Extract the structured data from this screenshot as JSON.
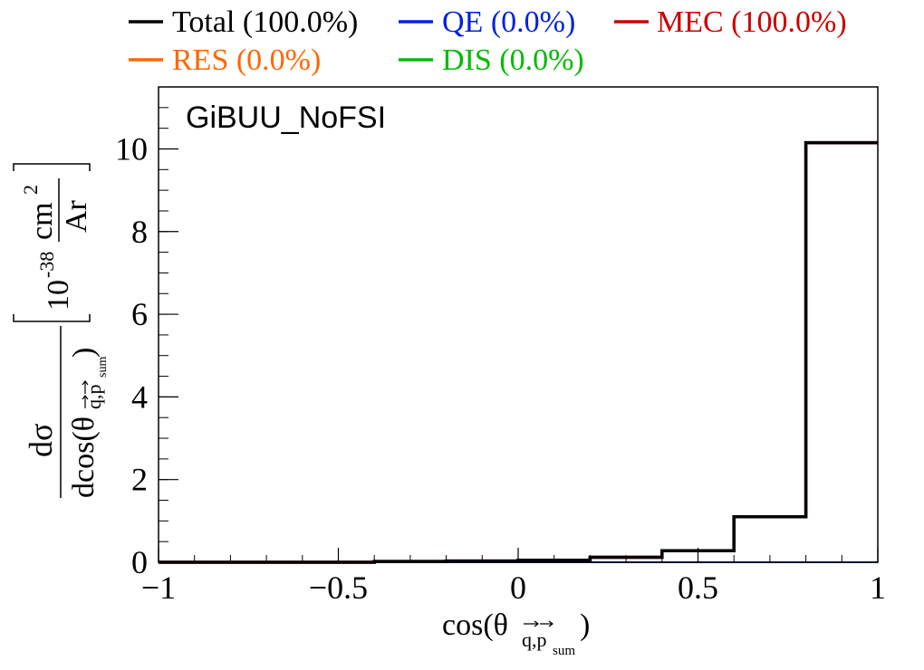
{
  "chart_data": {
    "type": "step",
    "annotation": "GiBUU_NoFSI",
    "xlabel": {
      "main": "cos(θ",
      "sub": "q,p",
      "subsub": "sum",
      "close": ")"
    },
    "ylabel": {
      "numerator": "dσ",
      "denominator_main": "dcos(θ",
      "denominator_sub": "q,p",
      "denominator_subsub": "sum",
      "denominator_close": ")",
      "unit_prefix": "10",
      "unit_exp": "-38",
      "unit_num": "cm",
      "unit_num_exp": "2",
      "unit_den": "Ar"
    },
    "xlim": [
      -1,
      1
    ],
    "ylim": [
      0,
      11.5
    ],
    "xticks": [
      -1,
      -0.5,
      0,
      0.5,
      1
    ],
    "xtick_labels": [
      "−1",
      "−0.5",
      "0",
      "0.5",
      "1"
    ],
    "yticks": [
      0,
      2,
      4,
      6,
      8,
      10
    ],
    "ytick_labels": [
      "0",
      "2",
      "4",
      "6",
      "8",
      "10"
    ],
    "bin_edges": [
      -1,
      -0.8,
      -0.6,
      -0.4,
      -0.2,
      0,
      0.2,
      0.4,
      0.6,
      0.8,
      1
    ],
    "legend": [
      {
        "label": "Total (100.0%)",
        "color": "#000000"
      },
      {
        "label": "QE (0.0%)",
        "color": "#0022dd"
      },
      {
        "label": "MEC (100.0%)",
        "color": "#cc0000"
      },
      {
        "label": "RES (0.0%)",
        "color": "#ff6600"
      },
      {
        "label": "DIS (0.0%)",
        "color": "#00bb00"
      }
    ],
    "series": [
      {
        "name": "Total (100.0%)",
        "color": "#000000",
        "values": [
          0.0,
          0.0,
          0.0,
          0.02,
          0.03,
          0.05,
          0.12,
          0.28,
          1.1,
          10.15
        ]
      },
      {
        "name": "MEC (100.0%)",
        "color": "#cc0000",
        "values": [
          0.0,
          0.0,
          0.0,
          0.02,
          0.03,
          0.05,
          0.12,
          0.28,
          1.1,
          10.15
        ]
      },
      {
        "name": "QE (0.0%)",
        "color": "#0022dd",
        "values": [
          0,
          0,
          0,
          0,
          0,
          0,
          0,
          0,
          0,
          0
        ]
      },
      {
        "name": "RES (0.0%)",
        "color": "#ff6600",
        "values": [
          0,
          0,
          0,
          0,
          0,
          0,
          0,
          0,
          0,
          0
        ]
      },
      {
        "name": "DIS (0.0%)",
        "color": "#00bb00",
        "values": [
          0,
          0,
          0,
          0,
          0,
          0,
          0,
          0,
          0,
          0
        ]
      }
    ]
  }
}
